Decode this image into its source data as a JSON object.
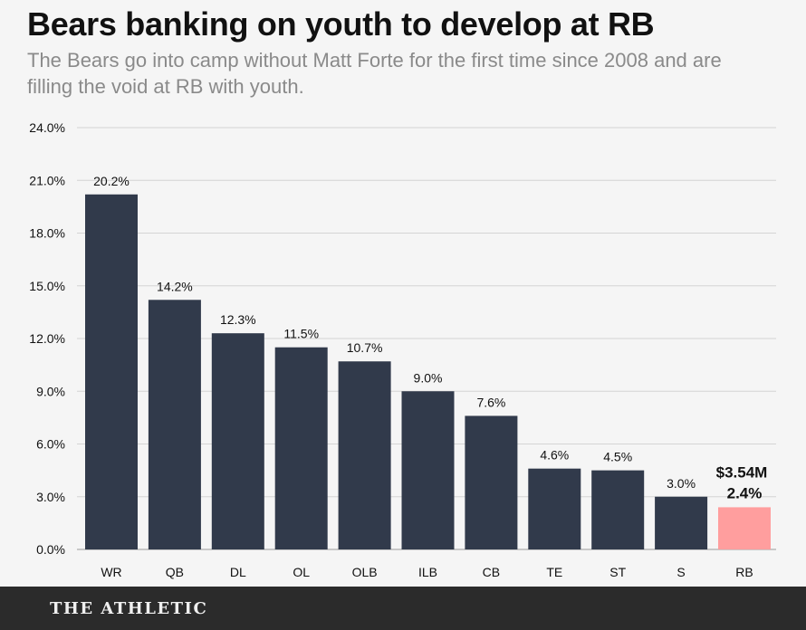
{
  "header": {
    "title": "Bears banking on youth to develop at RB",
    "subtitle": "The Bears go into camp without Matt Forte for the first time since 2008 and are filling the void at RB with youth."
  },
  "footer": {
    "brand": "THE ATHLETIC"
  },
  "colors": {
    "bar": "#313a4b",
    "highlight": "#ff9e9e",
    "grid": "#d4d4d4",
    "axis": "#9a9a9a",
    "text": "#111111"
  },
  "chart_data": {
    "type": "bar",
    "categories": [
      "WR",
      "QB",
      "DL",
      "OL",
      "OLB",
      "ILB",
      "CB",
      "TE",
      "ST",
      "S",
      "RB"
    ],
    "values": [
      20.2,
      14.2,
      12.3,
      11.5,
      10.7,
      9.0,
      7.6,
      4.6,
      4.5,
      3.0,
      2.4
    ],
    "value_labels": [
      "20.2%",
      "14.2%",
      "12.3%",
      "11.5%",
      "10.7%",
      "9.0%",
      "7.6%",
      "4.6%",
      "4.5%",
      "3.0%",
      "2.4%"
    ],
    "ylim": [
      0,
      24
    ],
    "yticks": [
      0,
      3,
      6,
      9,
      12,
      15,
      18,
      21,
      24
    ],
    "ytick_labels": [
      "0.0%",
      "3.0%",
      "6.0%",
      "9.0%",
      "12.0%",
      "15.0%",
      "18.0%",
      "21.0%",
      "24.0%"
    ],
    "grid": true,
    "highlight": {
      "category": "RB",
      "annotation": "$3.54M"
    }
  }
}
